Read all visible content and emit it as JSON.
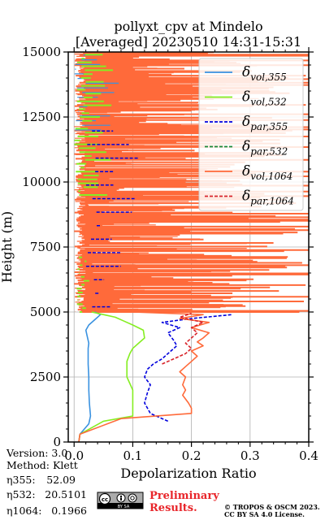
{
  "chart_data": {
    "type": "line",
    "title": "pollyxt_cpv at Mindelo",
    "subtitle": "[Averaged] 20230510 14:31-15:31",
    "xlabel": "Depolarization Ratio",
    "ylabel": "Height (m)",
    "xlim": [
      -0.01,
      0.4
    ],
    "ylim": [
      0,
      15000
    ],
    "xticks": [
      "0.0",
      "0.1",
      "0.2",
      "0.3",
      "0.4"
    ],
    "xtick_values": [
      0.0,
      0.1,
      0.2,
      0.3,
      0.4
    ],
    "yticks": [
      "0",
      "2500",
      "5000",
      "7500",
      "10000",
      "12500",
      "15000"
    ],
    "ytick_values": [
      0,
      2500,
      5000,
      7500,
      10000,
      12500,
      15000
    ],
    "grid": true,
    "legend_position": "top-right",
    "legend": [
      {
        "base": "δ",
        "sub": "vol,355",
        "color": "#3a92e0",
        "dash": "solid"
      },
      {
        "base": "δ",
        "sub": "vol,532",
        "color": "#85ee22",
        "dash": "solid"
      },
      {
        "base": "δ",
        "sub": "par,355",
        "color": "#0000dd",
        "dash": "dashed"
      },
      {
        "base": "δ",
        "sub": "par,532",
        "color": "#1a8a3a",
        "dash": "dashed"
      },
      {
        "base": "δ",
        "sub": "vol,1064",
        "color": "#ff6a3a",
        "dash": "solid"
      },
      {
        "base": "δ",
        "sub": "par,1064",
        "color": "#d8232a",
        "dash": "dashed"
      }
    ],
    "series": [
      {
        "color": "#3a92e0",
        "dash": "solid",
        "x": [
          0.008,
          0.01,
          0.025,
          0.028,
          0.026,
          0.025,
          0.025,
          0.024,
          0.024,
          0.024,
          0.025,
          0.022,
          0.02,
          0.025,
          0.035,
          0.045,
          0.035
        ],
        "y": [
          0,
          300,
          700,
          1000,
          1500,
          2000,
          2500,
          3000,
          3300,
          3600,
          3800,
          4100,
          4300,
          4500,
          4700,
          4900,
          5000
        ]
      },
      {
        "color": "#85ee22",
        "dash": "solid",
        "x": [
          0.008,
          0.01,
          0.05,
          0.1,
          0.1,
          0.1,
          0.09,
          0.09,
          0.09,
          0.095,
          0.1,
          0.11,
          0.12,
          0.118,
          0.1,
          0.085,
          0.07,
          0.05,
          0.03
        ],
        "y": [
          0,
          300,
          800,
          1000,
          1500,
          2000,
          2500,
          2800,
          3100,
          3400,
          3600,
          3800,
          4000,
          4300,
          4500,
          4650,
          4800,
          4900,
          5000
        ]
      },
      {
        "color": "#0000dd",
        "dash": "dashed",
        "x": [
          0.16,
          0.13,
          0.12,
          0.125,
          0.13,
          0.12,
          0.125,
          0.135,
          0.15,
          0.16,
          0.175,
          0.17,
          0.16,
          0.18,
          0.15,
          0.2,
          0.27
        ],
        "y": [
          800,
          1100,
          1500,
          1900,
          2200,
          2500,
          2800,
          3000,
          3200,
          3400,
          3700,
          3900,
          4200,
          4400,
          4600,
          4750,
          4900
        ]
      },
      {
        "color": "#ff6a3a",
        "dash": "solid",
        "x": [
          0.008,
          0.01,
          0.08,
          0.2,
          0.2,
          0.195,
          0.185,
          0.19,
          0.185,
          0.19,
          0.18,
          0.19,
          0.2,
          0.21,
          0.2,
          0.22,
          0.21,
          0.22,
          0.23,
          0.2,
          0.23,
          0.18,
          0.22,
          0.1
        ],
        "y": [
          0,
          300,
          900,
          1100,
          1300,
          1500,
          1800,
          2000,
          2200,
          2500,
          2700,
          2900,
          3100,
          3300,
          3500,
          3700,
          3850,
          4000,
          4200,
          4400,
          4600,
          4750,
          4900,
          5000
        ]
      },
      {
        "color": "#d8232a",
        "dash": "dashed",
        "x": [
          0.15,
          0.17,
          0.19,
          0.2,
          0.19,
          0.2,
          0.21,
          0.2,
          0.22,
          0.18,
          0.2
        ],
        "y": [
          3000,
          3200,
          3400,
          3600,
          3800,
          4000,
          4200,
          4400,
          4600,
          4800,
          4950
        ]
      }
    ]
  },
  "footer": {
    "version": "Version: 3.0",
    "method": "Method: Klett",
    "eta355_label": "η355:",
    "eta355_value": "52.09",
    "eta532_label": "η532:",
    "eta532_value": "20.5101",
    "eta1064_label": "η1064:",
    "eta1064_value": "0.1966",
    "preliminary_line1": "Preliminary",
    "preliminary_line2": "Results.",
    "copyright_line1": "© TROPOS & OSCM 2023.",
    "copyright_line2": "CC BY SA 4.0 License.",
    "license_badge_text": "BY SA"
  }
}
